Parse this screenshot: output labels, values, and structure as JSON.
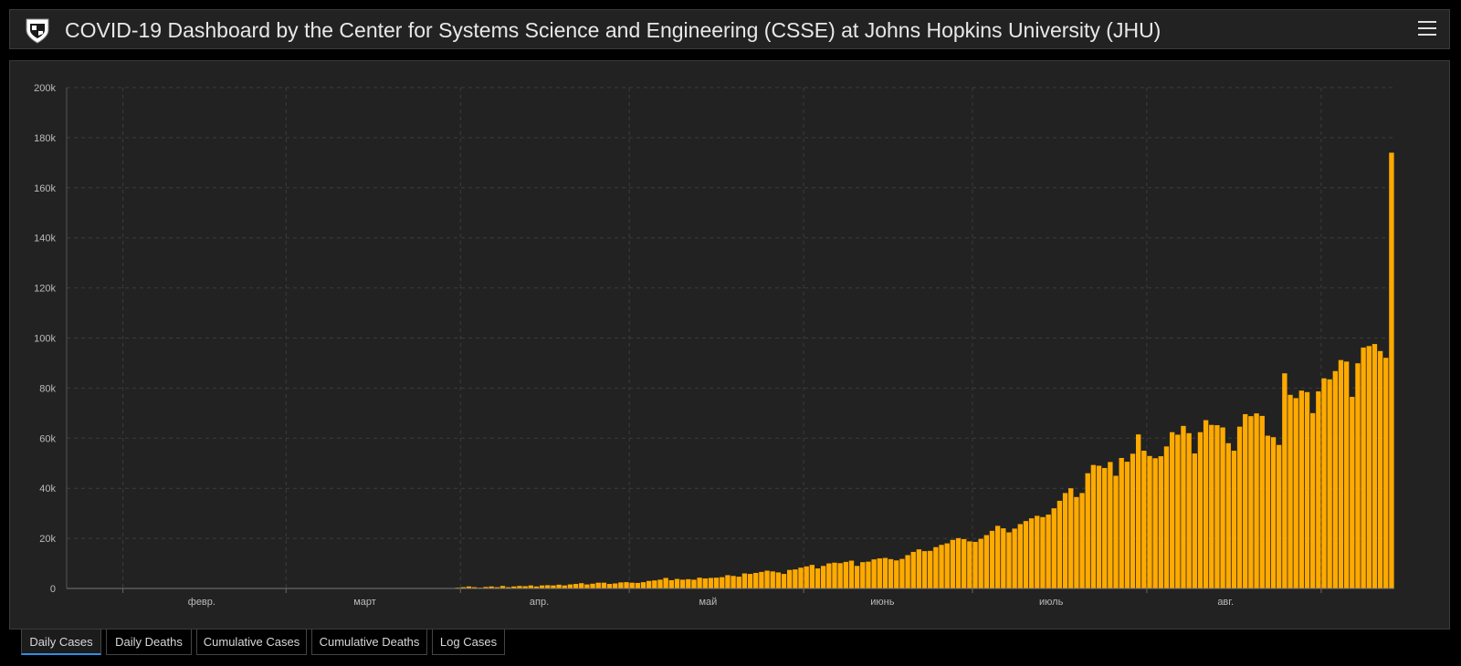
{
  "header": {
    "title": "COVID-19 Dashboard by the Center for Systems Science and Engineering (CSSE) at Johns Hopkins University (JHU)"
  },
  "tabs": [
    {
      "label": "Daily Cases",
      "active": true
    },
    {
      "label": "Daily Deaths",
      "active": false
    },
    {
      "label": "Cumulative Cases",
      "active": false
    },
    {
      "label": "Cumulative Deaths",
      "active": false
    },
    {
      "label": "Log Cases",
      "active": false
    }
  ],
  "colors": {
    "bar": "#ffaa00",
    "background": "#222222",
    "grid": "#3c3c3c"
  },
  "chart_data": {
    "type": "bar",
    "ylim": [
      0,
      200000
    ],
    "yticks": [
      {
        "value": 0,
        "label": "0"
      },
      {
        "value": 20000,
        "label": "20k"
      },
      {
        "value": 40000,
        "label": "40k"
      },
      {
        "value": 60000,
        "label": "60k"
      },
      {
        "value": 80000,
        "label": "80k"
      },
      {
        "value": 100000,
        "label": "100k"
      },
      {
        "value": 120000,
        "label": "120k"
      },
      {
        "value": 140000,
        "label": "140k"
      },
      {
        "value": 160000,
        "label": "160k"
      },
      {
        "value": 180000,
        "label": "180k"
      },
      {
        "value": 200000,
        "label": "200k"
      }
    ],
    "x_start": "2020-01-22",
    "month_boundaries": [
      "2020-02-01",
      "2020-03-01",
      "2020-04-01",
      "2020-05-01",
      "2020-06-01",
      "2020-07-01",
      "2020-08-01",
      "2020-09-01"
    ],
    "month_labels": [
      {
        "date": "2020-02-15",
        "label": "февр."
      },
      {
        "date": "2020-03-15",
        "label": "март"
      },
      {
        "date": "2020-04-15",
        "label": "апр."
      },
      {
        "date": "2020-05-15",
        "label": "май"
      },
      {
        "date": "2020-06-15",
        "label": "июнь"
      },
      {
        "date": "2020-07-15",
        "label": "июль"
      },
      {
        "date": "2020-08-15",
        "label": "авг."
      }
    ],
    "grid": true,
    "values": [
      0,
      0,
      0,
      0,
      0,
      0,
      0,
      0,
      0,
      0,
      0,
      0,
      0,
      0,
      0,
      0,
      0,
      0,
      0,
      0,
      0,
      0,
      0,
      0,
      0,
      0,
      0,
      0,
      0,
      0,
      0,
      0,
      0,
      0,
      0,
      0,
      0,
      0,
      0,
      0,
      0,
      0,
      0,
      0,
      0,
      0,
      0,
      0,
      0,
      0,
      0,
      0,
      0,
      0,
      0,
      0,
      0,
      0,
      0,
      0,
      0,
      0,
      0,
      0,
      0,
      0,
      0,
      0,
      0,
      300,
      500,
      800,
      500,
      300,
      600,
      800,
      500,
      1000,
      500,
      800,
      1000,
      900,
      1200,
      800,
      1200,
      1300,
      1200,
      1500,
      1200,
      1600,
      1800,
      2100,
      1600,
      1900,
      2300,
      2300,
      1800,
      2000,
      2400,
      2500,
      2300,
      2200,
      2500,
      3000,
      3200,
      3500,
      4200,
      3300,
      3800,
      3500,
      3700,
      3500,
      4300,
      4000,
      4200,
      4300,
      4500,
      5300,
      5000,
      4700,
      6000,
      5800,
      6200,
      6600,
      7100,
      6800,
      6400,
      5800,
      7400,
      7600,
      8300,
      8800,
      9400,
      8000,
      9000,
      10000,
      10300,
      10100,
      10600,
      11100,
      9000,
      10500,
      10700,
      11600,
      12000,
      12200,
      11700,
      11200,
      11800,
      13300,
      14600,
      15600,
      14900,
      15000,
      16500,
      17400,
      18000,
      19400,
      20100,
      19700,
      18800,
      18600,
      19800,
      21300,
      23000,
      25000,
      24000,
      22400,
      23900,
      25700,
      26900,
      28000,
      29000,
      28500,
      29500,
      32000,
      35000,
      38100,
      40000,
      36500,
      38100,
      46000,
      49300,
      49000,
      48100,
      50500,
      45000,
      52100,
      50600,
      53800,
      61500,
      55000,
      52900,
      52000,
      52800,
      56700,
      62400,
      61400,
      64900,
      62000,
      53900,
      62400,
      67200,
      65300,
      65200,
      64300,
      58000,
      55000,
      64600,
      69600,
      68800,
      69900,
      68900,
      61000,
      60400,
      57300,
      85900,
      77300,
      76000,
      79000,
      78400,
      70000,
      78700,
      83900,
      83500,
      86800,
      91200,
      90600,
      76500,
      89900,
      96200,
      96800,
      97600,
      94800,
      92100,
      174000
    ]
  }
}
